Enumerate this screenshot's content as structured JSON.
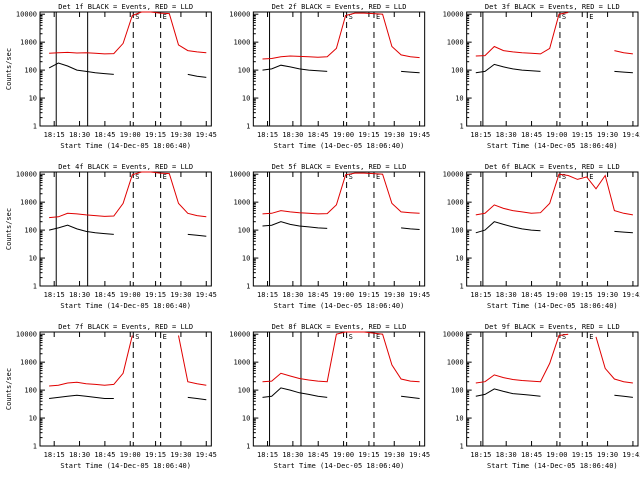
{
  "layout_grid": {
    "rows": 3,
    "cols": 3
  },
  "colors": {
    "black": "#000000",
    "red": "#e00000",
    "background": "#ffffff"
  },
  "common": {
    "ylabel": "Counts/sec",
    "xlabel": "Start Time (14-Dec-05 18:06:40)",
    "xticks": [
      "18:15",
      "18:30",
      "18:45",
      "19:00",
      "19:15",
      "19:30",
      "19:45"
    ],
    "ytick_labels": [
      "1",
      "10",
      "100",
      "1000",
      "10000"
    ],
    "ylim": [
      1,
      12000
    ],
    "yscale": "log",
    "marker_labels": [
      "S",
      "E"
    ]
  },
  "chart_data": [
    {
      "type": "line",
      "title": "Det 1f BLACK = Events, RED = LLD",
      "show_ylabel": true,
      "series": [
        {
          "color": "red",
          "values": [
            400,
            420,
            430,
            410,
            415,
            400,
            380,
            390,
            900,
            9000,
            12000,
            12000,
            11000,
            10500,
            800,
            500,
            450,
            420
          ]
        },
        {
          "color": "black",
          "values": [
            120,
            180,
            140,
            100,
            90,
            80,
            75,
            70,
            null,
            null,
            null,
            null,
            null,
            null,
            null,
            70,
            60,
            55
          ]
        }
      ],
      "marks_solid": [
        18.27,
        18.58
      ],
      "marks_dashed": [
        19.03,
        19.3
      ]
    },
    {
      "type": "line",
      "title": "Det 2f BLACK = Events, RED = LLD",
      "show_ylabel": false,
      "series": [
        {
          "color": "red",
          "values": [
            250,
            260,
            300,
            320,
            310,
            300,
            290,
            300,
            600,
            9000,
            11000,
            11000,
            10500,
            10000,
            700,
            350,
            300,
            280
          ]
        },
        {
          "color": "black",
          "values": [
            100,
            110,
            150,
            130,
            110,
            100,
            95,
            90,
            null,
            null,
            null,
            null,
            null,
            null,
            null,
            90,
            85,
            80
          ]
        }
      ],
      "marks_solid": [
        18.27,
        18.58
      ],
      "marks_dashed": [
        19.03,
        19.3
      ]
    },
    {
      "type": "line",
      "title": "Det 3f BLACK = Events, RED = LLD",
      "show_ylabel": false,
      "series": [
        {
          "color": "red",
          "values": [
            320,
            330,
            700,
            500,
            450,
            420,
            400,
            380,
            600,
            10000,
            11500,
            null,
            null,
            null,
            null,
            500,
            420,
            380
          ]
        },
        {
          "color": "black",
          "values": [
            80,
            90,
            160,
            130,
            110,
            100,
            95,
            90,
            null,
            null,
            null,
            null,
            null,
            null,
            null,
            90,
            85,
            80
          ]
        }
      ],
      "marks_solid": [
        18.27
      ],
      "marks_dashed": [
        19.03,
        19.3
      ]
    },
    {
      "type": "line",
      "title": "Det 4f BLACK = Events, RED = LLD",
      "show_ylabel": true,
      "series": [
        {
          "color": "red",
          "values": [
            280,
            300,
            400,
            380,
            350,
            330,
            310,
            320,
            900,
            9500,
            12000,
            12000,
            11000,
            10500,
            900,
            400,
            330,
            300
          ]
        },
        {
          "color": "black",
          "values": [
            100,
            120,
            150,
            110,
            90,
            80,
            75,
            70,
            null,
            null,
            null,
            null,
            null,
            null,
            null,
            70,
            65,
            60
          ]
        }
      ],
      "marks_solid": [
        18.27,
        18.58
      ],
      "marks_dashed": [
        19.03,
        19.3
      ]
    },
    {
      "type": "line",
      "title": "Det 5f BLACK = Events, RED = LLD",
      "show_ylabel": false,
      "series": [
        {
          "color": "red",
          "values": [
            380,
            400,
            500,
            450,
            420,
            400,
            380,
            390,
            800,
            9500,
            11000,
            11000,
            10500,
            10000,
            900,
            450,
            420,
            400
          ]
        },
        {
          "color": "black",
          "values": [
            140,
            150,
            200,
            160,
            140,
            130,
            120,
            115,
            null,
            null,
            null,
            null,
            null,
            null,
            null,
            120,
            110,
            105
          ]
        }
      ],
      "marks_solid": [
        18.27,
        18.58
      ],
      "marks_dashed": [
        19.03,
        19.3
      ]
    },
    {
      "type": "line",
      "title": "Det 6f BLACK = Events, RED = LLD",
      "show_ylabel": false,
      "series": [
        {
          "color": "red",
          "values": [
            350,
            400,
            800,
            600,
            500,
            450,
            400,
            420,
            900,
            10000,
            9000,
            6500,
            8000,
            3000,
            9000,
            500,
            400,
            350
          ]
        },
        {
          "color": "black",
          "values": [
            80,
            100,
            200,
            160,
            130,
            110,
            100,
            95,
            null,
            null,
            null,
            null,
            null,
            null,
            null,
            90,
            85,
            80
          ]
        }
      ],
      "marks_solid": [
        18.27
      ],
      "marks_dashed": [
        19.03,
        19.3
      ]
    },
    {
      "type": "line",
      "title": "Det 7f BLACK = Events, RED = LLD",
      "show_ylabel": true,
      "series": [
        {
          "color": "red",
          "values": [
            140,
            150,
            180,
            190,
            170,
            160,
            150,
            160,
            400,
            9000,
            null,
            null,
            null,
            null,
            9000,
            200,
            170,
            150
          ]
        },
        {
          "color": "black",
          "values": [
            50,
            55,
            60,
            65,
            60,
            55,
            50,
            50,
            null,
            null,
            null,
            null,
            null,
            null,
            null,
            55,
            50,
            45
          ]
        }
      ],
      "marks_solid": [],
      "marks_dashed": [
        19.03,
        19.3
      ]
    },
    {
      "type": "line",
      "title": "Det 8f BLACK = Events, RED = LLD",
      "show_ylabel": false,
      "series": [
        {
          "color": "red",
          "values": [
            200,
            210,
            400,
            320,
            260,
            230,
            210,
            200,
            10000,
            12000,
            12000,
            12000,
            11000,
            10000,
            800,
            250,
            210,
            200
          ]
        },
        {
          "color": "black",
          "values": [
            55,
            60,
            120,
            100,
            80,
            70,
            60,
            55,
            null,
            null,
            null,
            null,
            null,
            null,
            null,
            60,
            55,
            50
          ]
        }
      ],
      "marks_solid": [
        18.27,
        18.58
      ],
      "marks_dashed": [
        19.03,
        19.3
      ]
    },
    {
      "type": "line",
      "title": "Det 9f BLACK = Events, RED = LLD",
      "show_ylabel": false,
      "series": [
        {
          "color": "red",
          "values": [
            180,
            200,
            350,
            280,
            240,
            220,
            210,
            200,
            900,
            9000,
            10000,
            null,
            null,
            8000,
            600,
            250,
            200,
            180
          ]
        },
        {
          "color": "black",
          "values": [
            60,
            70,
            110,
            90,
            75,
            70,
            65,
            60,
            null,
            null,
            null,
            null,
            null,
            null,
            null,
            65,
            60,
            55
          ]
        }
      ],
      "marks_solid": [
        18.27
      ],
      "marks_dashed": [
        19.03,
        19.3
      ]
    }
  ]
}
